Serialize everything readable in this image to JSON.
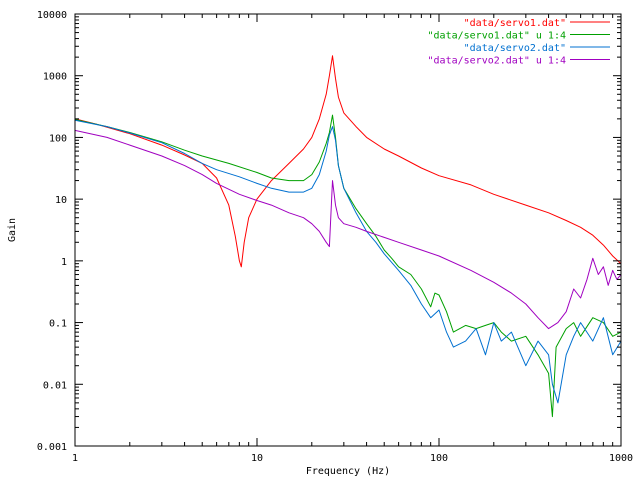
{
  "chart_data": {
    "type": "line",
    "title": "",
    "xlabel": "Frequency (Hz)",
    "ylabel": "Gain",
    "x_scale": "log",
    "y_scale": "log",
    "xlim": [
      1,
      1000
    ],
    "ylim": [
      0.001,
      10000
    ],
    "x_ticks": [
      {
        "value": 1,
        "label": "1"
      },
      {
        "value": 10,
        "label": "10"
      },
      {
        "value": 100,
        "label": "100"
      },
      {
        "value": 1000,
        "label": "1000"
      }
    ],
    "y_ticks": [
      {
        "value": 0.001,
        "label": "0.001"
      },
      {
        "value": 0.01,
        "label": "0.01"
      },
      {
        "value": 0.1,
        "label": "0.1"
      },
      {
        "value": 1,
        "label": "1"
      },
      {
        "value": 10,
        "label": "10"
      },
      {
        "value": 100,
        "label": "100"
      },
      {
        "value": 1000,
        "label": "1000"
      },
      {
        "value": 10000,
        "label": "10000"
      }
    ],
    "grid": false,
    "legend_position": "top-right",
    "series": [
      {
        "name": "\"data/servo1.dat\"",
        "color": "#ff0000",
        "points": [
          [
            1,
            200
          ],
          [
            1.3,
            165
          ],
          [
            2,
            115
          ],
          [
            3,
            75
          ],
          [
            4,
            52
          ],
          [
            5,
            38
          ],
          [
            6,
            22
          ],
          [
            7,
            8
          ],
          [
            7.6,
            2.5
          ],
          [
            8,
            1.0
          ],
          [
            8.2,
            0.8
          ],
          [
            8.5,
            2
          ],
          [
            9,
            5
          ],
          [
            10,
            10
          ],
          [
            12,
            20
          ],
          [
            15,
            38
          ],
          [
            18,
            65
          ],
          [
            20,
            100
          ],
          [
            22,
            200
          ],
          [
            24,
            500
          ],
          [
            25,
            1000
          ],
          [
            26,
            2100
          ],
          [
            27,
            900
          ],
          [
            28,
            450
          ],
          [
            30,
            250
          ],
          [
            35,
            150
          ],
          [
            40,
            100
          ],
          [
            50,
            65
          ],
          [
            60,
            50
          ],
          [
            80,
            32
          ],
          [
            100,
            24
          ],
          [
            150,
            17
          ],
          [
            200,
            12
          ],
          [
            300,
            8
          ],
          [
            400,
            6
          ],
          [
            500,
            4.5
          ],
          [
            600,
            3.5
          ],
          [
            700,
            2.6
          ],
          [
            800,
            1.8
          ],
          [
            900,
            1.2
          ],
          [
            1000,
            0.9
          ]
        ]
      },
      {
        "name": "\"data/servo1.dat\" u 1:4",
        "color": "#00a000",
        "points": [
          [
            1,
            195
          ],
          [
            1.5,
            150
          ],
          [
            2,
            120
          ],
          [
            3,
            85
          ],
          [
            4,
            62
          ],
          [
            5,
            50
          ],
          [
            7,
            38
          ],
          [
            10,
            27
          ],
          [
            12,
            22
          ],
          [
            15,
            20
          ],
          [
            18,
            20
          ],
          [
            20,
            25
          ],
          [
            22,
            40
          ],
          [
            24,
            80
          ],
          [
            25,
            120
          ],
          [
            26,
            230
          ],
          [
            27,
            100
          ],
          [
            28,
            35
          ],
          [
            30,
            15
          ],
          [
            35,
            7
          ],
          [
            40,
            4
          ],
          [
            45,
            2.5
          ],
          [
            50,
            1.5
          ],
          [
            55,
            1.1
          ],
          [
            60,
            0.8
          ],
          [
            70,
            0.6
          ],
          [
            80,
            0.35
          ],
          [
            90,
            0.18
          ],
          [
            95,
            0.3
          ],
          [
            100,
            0.28
          ],
          [
            110,
            0.15
          ],
          [
            120,
            0.07
          ],
          [
            140,
            0.09
          ],
          [
            160,
            0.08
          ],
          [
            180,
            0.09
          ],
          [
            200,
            0.1
          ],
          [
            220,
            0.07
          ],
          [
            250,
            0.05
          ],
          [
            300,
            0.06
          ],
          [
            350,
            0.03
          ],
          [
            400,
            0.015
          ],
          [
            420,
            0.003
          ],
          [
            440,
            0.04
          ],
          [
            500,
            0.08
          ],
          [
            550,
            0.1
          ],
          [
            600,
            0.06
          ],
          [
            700,
            0.12
          ],
          [
            800,
            0.1
          ],
          [
            900,
            0.06
          ],
          [
            1000,
            0.07
          ]
        ]
      },
      {
        "name": "\"data/servo2.dat\"",
        "color": "#0070d0",
        "points": [
          [
            1,
            190
          ],
          [
            1.5,
            150
          ],
          [
            2,
            118
          ],
          [
            3,
            82
          ],
          [
            4,
            55
          ],
          [
            5,
            38
          ],
          [
            6,
            30
          ],
          [
            8,
            23
          ],
          [
            10,
            18
          ],
          [
            12,
            15
          ],
          [
            15,
            13
          ],
          [
            18,
            13
          ],
          [
            20,
            15
          ],
          [
            22,
            25
          ],
          [
            24,
            60
          ],
          [
            25,
            110
          ],
          [
            26,
            150
          ],
          [
            27,
            90
          ],
          [
            28,
            35
          ],
          [
            30,
            15
          ],
          [
            35,
            6
          ],
          [
            40,
            3
          ],
          [
            45,
            2
          ],
          [
            50,
            1.3
          ],
          [
            60,
            0.7
          ],
          [
            70,
            0.4
          ],
          [
            80,
            0.2
          ],
          [
            90,
            0.12
          ],
          [
            100,
            0.16
          ],
          [
            110,
            0.07
          ],
          [
            120,
            0.04
          ],
          [
            140,
            0.05
          ],
          [
            160,
            0.08
          ],
          [
            180,
            0.03
          ],
          [
            200,
            0.1
          ],
          [
            220,
            0.05
          ],
          [
            250,
            0.07
          ],
          [
            300,
            0.02
          ],
          [
            350,
            0.05
          ],
          [
            400,
            0.03
          ],
          [
            420,
            0.01
          ],
          [
            450,
            0.005
          ],
          [
            500,
            0.03
          ],
          [
            550,
            0.06
          ],
          [
            600,
            0.1
          ],
          [
            700,
            0.05
          ],
          [
            800,
            0.12
          ],
          [
            900,
            0.03
          ],
          [
            1000,
            0.05
          ]
        ]
      },
      {
        "name": "\"data/servo2.dat\" u 1:4",
        "color": "#a000c0",
        "points": [
          [
            1,
            130
          ],
          [
            1.5,
            100
          ],
          [
            2,
            75
          ],
          [
            3,
            50
          ],
          [
            4,
            35
          ],
          [
            5,
            25
          ],
          [
            6,
            18
          ],
          [
            8,
            12
          ],
          [
            10,
            9.5
          ],
          [
            12,
            8
          ],
          [
            15,
            6
          ],
          [
            18,
            5
          ],
          [
            20,
            4
          ],
          [
            22,
            3
          ],
          [
            24,
            2
          ],
          [
            25,
            1.7
          ],
          [
            26,
            20
          ],
          [
            27,
            8
          ],
          [
            28,
            5
          ],
          [
            30,
            4
          ],
          [
            35,
            3.5
          ],
          [
            40,
            3
          ],
          [
            50,
            2.4
          ],
          [
            60,
            2
          ],
          [
            80,
            1.5
          ],
          [
            100,
            1.2
          ],
          [
            150,
            0.7
          ],
          [
            200,
            0.45
          ],
          [
            250,
            0.3
          ],
          [
            300,
            0.2
          ],
          [
            350,
            0.12
          ],
          [
            400,
            0.08
          ],
          [
            450,
            0.1
          ],
          [
            500,
            0.15
          ],
          [
            550,
            0.35
          ],
          [
            600,
            0.25
          ],
          [
            650,
            0.5
          ],
          [
            700,
            1.1
          ],
          [
            750,
            0.6
          ],
          [
            800,
            0.8
          ],
          [
            850,
            0.4
          ],
          [
            900,
            0.7
          ],
          [
            950,
            0.5
          ],
          [
            1000,
            0.6
          ]
        ]
      }
    ]
  }
}
